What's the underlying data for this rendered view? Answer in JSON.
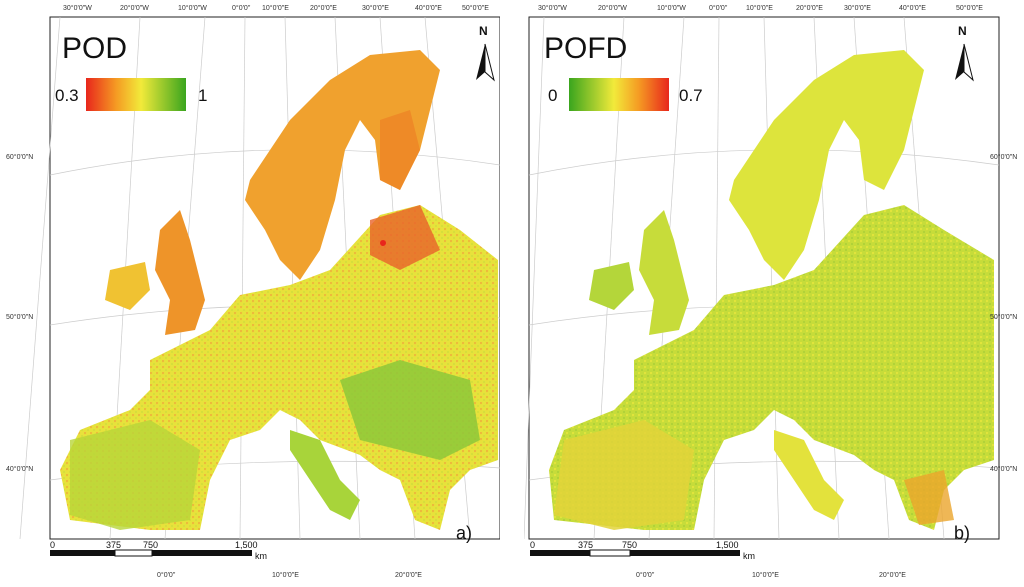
{
  "colors": {
    "red": "#e8261c",
    "orange": "#f59a23",
    "yellow": "#f2ea3a",
    "green": "#3aa51e"
  },
  "top_lon_labels": [
    "30°0'0\"W",
    "20°0'0\"W",
    "10°0'0\"W",
    "0°0'0\"",
    "10°0'0\"E",
    "20°0'0\"E",
    "30°0'0\"E",
    "40°0'0\"E",
    "50°0'0\"E"
  ],
  "bottom_lon_labels": [
    "0°0'0\"",
    "10°0'0\"E",
    "20°0'0\"E"
  ],
  "lat_labels": [
    "60°0'0\"N",
    "50°0'0\"N",
    "40°0'0\"N"
  ],
  "north_label": "N",
  "scale": {
    "ticks": [
      "0",
      "375",
      "750",
      "1,500"
    ],
    "unit": "km"
  },
  "panels": [
    {
      "title": "POD",
      "legend_min": "0.3",
      "legend_max": "1",
      "legend_gradient": "red-to-green",
      "label": "a)"
    },
    {
      "title": "POFD",
      "legend_min": "0",
      "legend_max": "0.7",
      "legend_gradient": "green-to-red",
      "label": "b)"
    }
  ]
}
